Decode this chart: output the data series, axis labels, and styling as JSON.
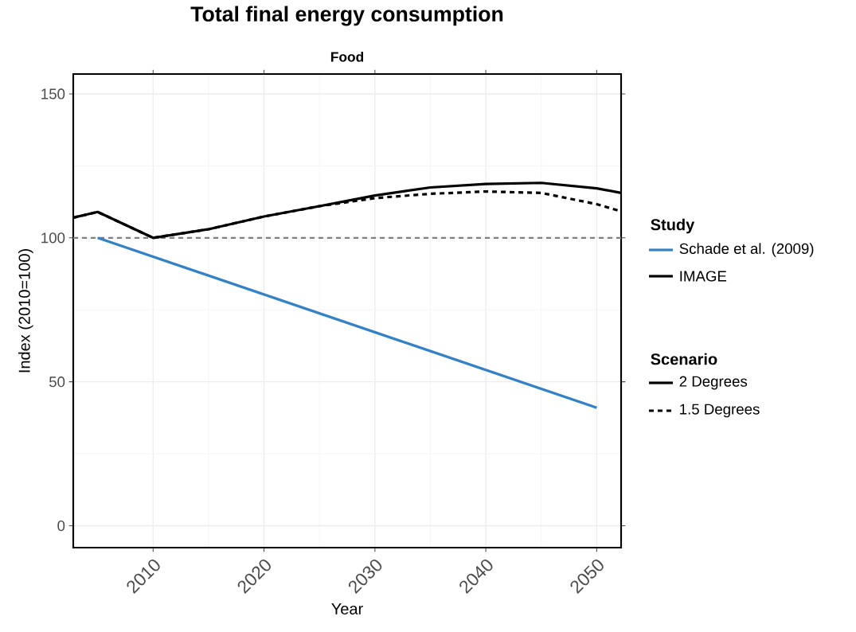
{
  "chart_data": {
    "type": "line",
    "title": "Total final energy consumption",
    "subtitle": "Food",
    "xlabel": "Year",
    "ylabel": "Index (2010=100)",
    "legend_title": "Study",
    "xlim": [
      2002.8,
      2052.2
    ],
    "ylim": [
      -7.6,
      156.9
    ],
    "xticks": [
      2010,
      2020,
      2030,
      2040,
      2050
    ],
    "yticks": [
      0,
      50,
      100,
      150
    ],
    "grid": true,
    "legend": "right",
    "series": [
      {
        "name": "Schade et al. (2009)",
        "color": "#3182c8",
        "x": [
          2005,
          2050
        ],
        "values": [
          100,
          41
        ]
      },
      {
        "name": "IMAGE",
        "color": "#000000",
        "line_style": "solid",
        "x": [
          2002.8,
          2005,
          2010,
          2015,
          2020,
          2025,
          2030,
          2035,
          2040,
          2045,
          2050,
          2052.2
        ],
        "values": [
          107,
          109,
          100,
          103,
          107.4,
          111,
          114.7,
          117.5,
          118.7,
          119.1,
          117.2,
          115.6
        ]
      },
      {
        "color": "#000000",
        "line_style": "dashed",
        "x": [
          2002.8,
          2005,
          2010,
          2015,
          2020,
          2025,
          2030,
          2035,
          2040,
          2045,
          2050,
          2052.2
        ],
        "values": [
          107,
          109,
          100,
          103,
          107.4,
          111,
          113.8,
          115.3,
          116.1,
          115.6,
          111.7,
          109.2
        ]
      }
    ],
    "ref_lines": [
      {
        "axis": "y",
        "value": 100,
        "color": "#7f7f7f",
        "line_style": "dashed"
      }
    ],
    "annotations": [
      "Scenario",
      "2 Degrees",
      "1.5 Degrees"
    ]
  }
}
